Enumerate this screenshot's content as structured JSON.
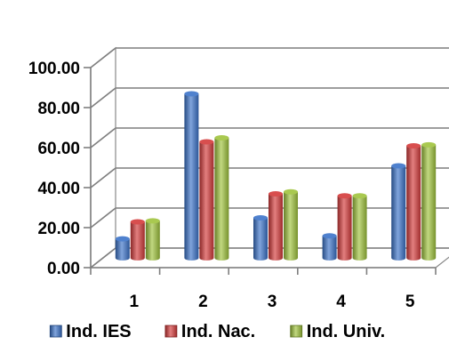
{
  "chart_data": {
    "type": "bar",
    "title": "",
    "xlabel": "",
    "ylabel": "",
    "categories": [
      "1",
      "2",
      "3",
      "4",
      "5"
    ],
    "ylim": [
      0,
      100
    ],
    "yticks": [
      "0.00",
      "20.00",
      "40.00",
      "60.00",
      "80.00",
      "100.00"
    ],
    "grid": true,
    "legend_position": "bottom",
    "series": [
      {
        "name": "Ind. IES",
        "values": [
          9.5,
          82.0,
          20.0,
          11.0,
          46.0
        ],
        "color": "#3b73c9"
      },
      {
        "name": "Ind. Nac.",
        "values": [
          18.0,
          58.0,
          32.0,
          31.0,
          56.0
        ],
        "color": "#d43a3a"
      },
      {
        "name": "Ind. Univ.",
        "values": [
          18.5,
          60.0,
          33.0,
          31.0,
          56.5
        ],
        "color": "#9fc33c"
      }
    ]
  }
}
